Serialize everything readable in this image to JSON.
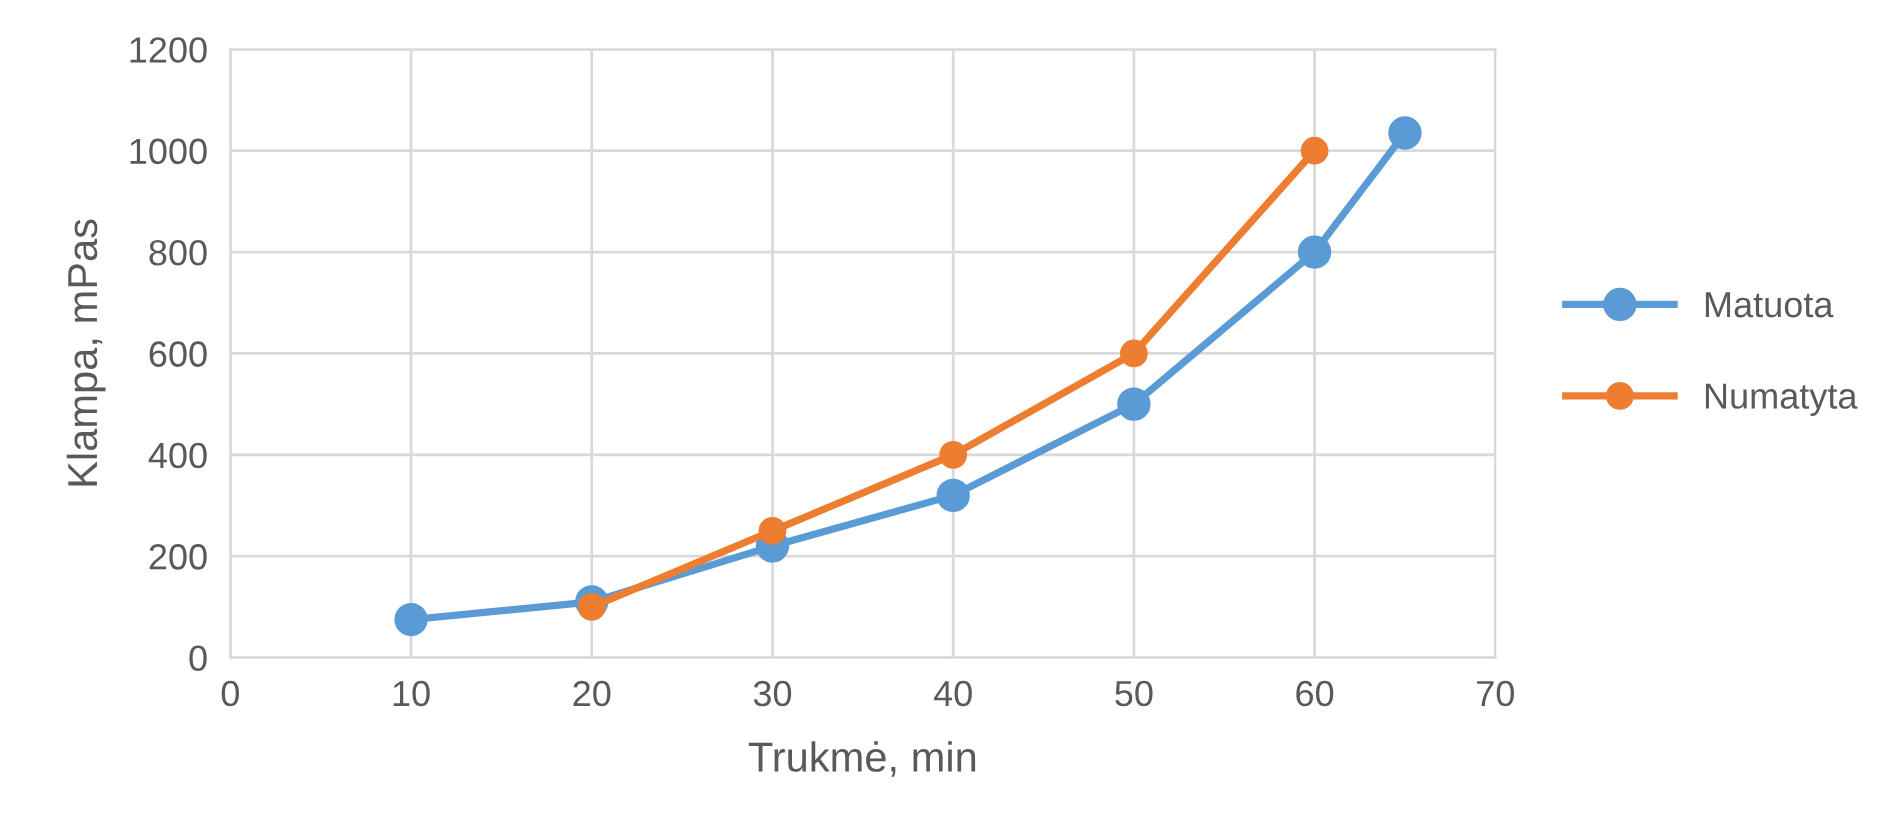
{
  "chart_data": {
    "type": "line",
    "xlabel": "Trukmė, min",
    "ylabel": "Klampa, mPas",
    "xlim": [
      0,
      70
    ],
    "xticks": [
      0,
      10,
      20,
      30,
      40,
      50,
      60,
      70
    ],
    "ylim": [
      0,
      1200
    ],
    "yticks": [
      0,
      200,
      400,
      600,
      800,
      1000,
      1200
    ],
    "grid": true,
    "legend": "right",
    "marker": "circle",
    "line_style": "solid",
    "series": [
      {
        "name": "Matuota",
        "color": "#5b9bd5",
        "x": [
          10,
          20,
          30,
          40,
          50,
          60,
          65
        ],
        "values": [
          75,
          110,
          220,
          320,
          500,
          800,
          1035
        ]
      },
      {
        "name": "Numatyta",
        "color": "#ed7d31",
        "x": [
          20,
          30,
          40,
          50,
          60
        ],
        "values": [
          100,
          250,
          400,
          600,
          1000
        ]
      }
    ]
  }
}
